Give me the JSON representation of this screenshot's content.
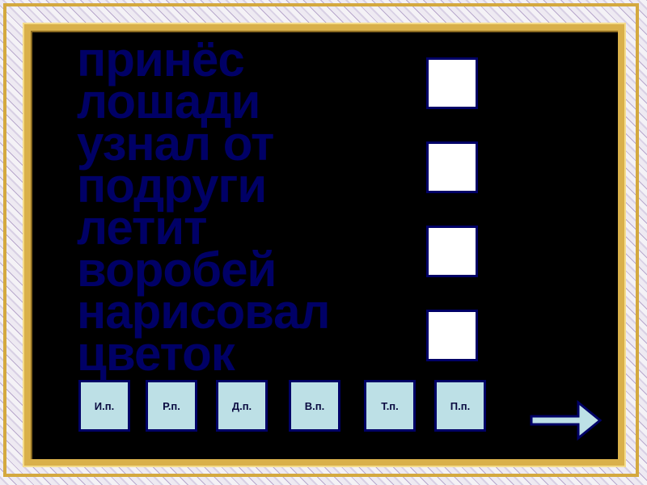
{
  "phrases": [
    {
      "text": "принёс лошади",
      "lines": [
        "принёс",
        "лошад",
        "и"
      ]
    },
    {
      "text": "узнал от подруги",
      "lines": [
        "узнал от",
        "подруги"
      ]
    },
    {
      "text": "летит воробей",
      "lines": [
        "летит",
        "воробе",
        "й"
      ]
    },
    {
      "text": "нарисовал цветок",
      "lines": [
        "нарисов",
        "ал",
        "цветок"
      ]
    }
  ],
  "cases": [
    "И.п.",
    "Р.п.",
    "Д.п.",
    "В.п.",
    "Т.п.",
    "П.п."
  ],
  "navigation": {
    "next_icon": "arrow-right-icon"
  },
  "colors": {
    "text": "#000066",
    "button_fill": "#bde0e6",
    "board": "#000000",
    "frame": "#d4a93f"
  }
}
